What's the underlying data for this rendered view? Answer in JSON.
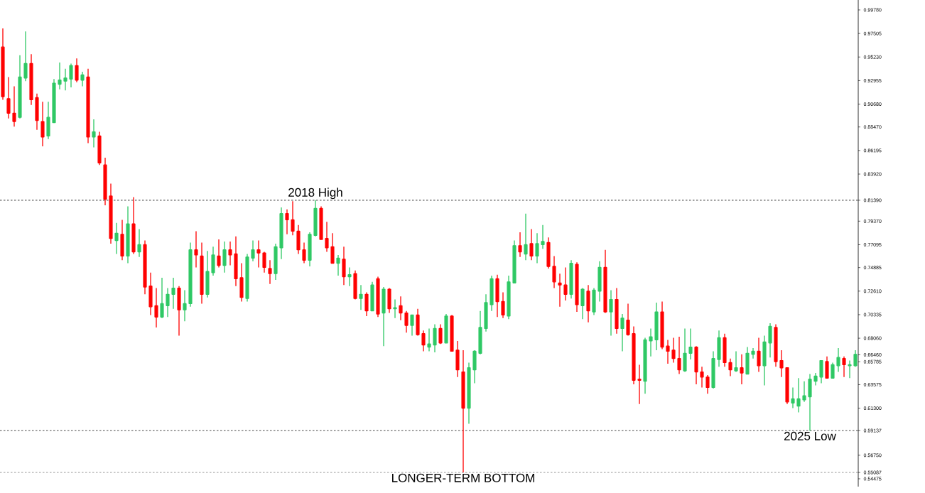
{
  "chart_data": {
    "type": "candlestick",
    "categories": [
      null,
      null,
      null,
      null,
      null,
      null,
      null,
      null,
      null,
      null,
      null,
      null,
      null,
      null,
      null,
      null,
      null,
      null,
      null,
      null,
      null,
      null,
      null,
      null,
      null,
      null,
      null,
      null,
      null,
      null,
      null,
      null,
      null,
      null,
      null,
      null,
      null,
      null,
      null,
      null,
      null,
      null,
      null,
      null,
      null,
      null,
      null,
      null,
      null,
      null,
      null,
      null,
      null,
      null,
      null,
      null,
      null,
      null,
      null,
      null,
      null,
      null,
      null,
      null,
      null,
      null,
      null,
      null,
      null,
      null,
      null,
      null,
      null,
      null,
      null,
      null,
      null,
      null,
      null,
      null,
      null,
      null,
      null,
      null,
      null,
      null,
      null,
      null,
      null,
      null,
      null,
      null,
      null,
      null,
      null,
      null,
      null,
      null,
      null,
      null,
      null,
      null,
      null,
      null,
      null,
      null,
      null,
      null,
      null,
      null,
      null,
      null,
      null,
      null,
      null,
      null,
      null,
      null,
      null,
      null,
      null,
      null,
      null,
      null,
      null,
      null,
      null,
      null,
      null,
      null,
      null,
      null,
      null,
      null,
      null,
      null,
      null,
      null,
      null,
      null,
      null,
      null,
      null,
      null,
      null,
      null,
      null,
      null,
      null,
      null,
      null
    ],
    "ohlc": [
      [
        0.962,
        0.98,
        0.911,
        0.914
      ],
      [
        0.912,
        0.933,
        0.893,
        0.898
      ],
      [
        0.898,
        0.924,
        0.885,
        0.89
      ],
      [
        0.894,
        0.954,
        0.893,
        0.933
      ],
      [
        0.932,
        0.977,
        0.929,
        0.946
      ],
      [
        0.946,
        0.955,
        0.906,
        0.911
      ],
      [
        0.913,
        0.917,
        0.882,
        0.891
      ],
      [
        0.89,
        0.909,
        0.866,
        0.875
      ],
      [
        0.876,
        0.909,
        0.873,
        0.894
      ],
      [
        0.889,
        0.931,
        0.889,
        0.927
      ],
      [
        0.926,
        0.947,
        0.921,
        0.93
      ],
      [
        0.929,
        0.941,
        0.92,
        0.932
      ],
      [
        0.931,
        0.946,
        0.923,
        0.944
      ],
      [
        0.944,
        0.951,
        0.928,
        0.93
      ],
      [
        0.93,
        0.938,
        0.924,
        0.935
      ],
      [
        0.933,
        0.941,
        0.869,
        0.875
      ],
      [
        0.875,
        0.892,
        0.865,
        0.88
      ],
      [
        0.876,
        0.88,
        0.848,
        0.85
      ],
      [
        0.848,
        0.855,
        0.809,
        0.815
      ],
      [
        0.818,
        0.83,
        0.772,
        0.777
      ],
      [
        0.775,
        0.792,
        0.762,
        0.782
      ],
      [
        0.781,
        0.795,
        0.756,
        0.76
      ],
      [
        0.76,
        0.808,
        0.753,
        0.791
      ],
      [
        0.791,
        0.817,
        0.762,
        0.764
      ],
      [
        0.764,
        0.786,
        0.759,
        0.771
      ],
      [
        0.771,
        0.775,
        0.723,
        0.73
      ],
      [
        0.731,
        0.744,
        0.703,
        0.711
      ],
      [
        0.712,
        0.729,
        0.691,
        0.701
      ],
      [
        0.701,
        0.739,
        0.7,
        0.714
      ],
      [
        0.712,
        0.729,
        0.701,
        0.723
      ],
      [
        0.723,
        0.739,
        0.709,
        0.729
      ],
      [
        0.729,
        0.731,
        0.683,
        0.708
      ],
      [
        0.708,
        0.727,
        0.697,
        0.714
      ],
      [
        0.714,
        0.773,
        0.711,
        0.766
      ],
      [
        0.766,
        0.784,
        0.749,
        0.761
      ],
      [
        0.76,
        0.773,
        0.714,
        0.723
      ],
      [
        0.723,
        0.765,
        0.72,
        0.745
      ],
      [
        0.744,
        0.769,
        0.741,
        0.761
      ],
      [
        0.76,
        0.776,
        0.749,
        0.751
      ],
      [
        0.751,
        0.774,
        0.744,
        0.766
      ],
      [
        0.766,
        0.774,
        0.751,
        0.761
      ],
      [
        0.762,
        0.779,
        0.731,
        0.738
      ],
      [
        0.739,
        0.753,
        0.716,
        0.72
      ],
      [
        0.719,
        0.762,
        0.716,
        0.759
      ],
      [
        0.758,
        0.775,
        0.755,
        0.766
      ],
      [
        0.766,
        0.775,
        0.749,
        0.763
      ],
      [
        0.763,
        0.764,
        0.744,
        0.749
      ],
      [
        0.748,
        0.756,
        0.733,
        0.743
      ],
      [
        0.743,
        0.772,
        0.737,
        0.769
      ],
      [
        0.768,
        0.807,
        0.757,
        0.801
      ],
      [
        0.801,
        0.805,
        0.781,
        0.795
      ],
      [
        0.795,
        0.813,
        0.78,
        0.784
      ],
      [
        0.784,
        0.79,
        0.762,
        0.766
      ],
      [
        0.766,
        0.773,
        0.753,
        0.756
      ],
      [
        0.756,
        0.783,
        0.75,
        0.781
      ],
      [
        0.78,
        0.814,
        0.779,
        0.806
      ],
      [
        0.806,
        0.808,
        0.776,
        0.776
      ],
      [
        0.777,
        0.793,
        0.764,
        0.768
      ],
      [
        0.769,
        0.782,
        0.753,
        0.753
      ],
      [
        0.753,
        0.761,
        0.741,
        0.758
      ],
      [
        0.757,
        0.769,
        0.732,
        0.74
      ],
      [
        0.74,
        0.749,
        0.731,
        0.742
      ],
      [
        0.743,
        0.746,
        0.718,
        0.719
      ],
      [
        0.719,
        0.732,
        0.708,
        0.723
      ],
      [
        0.723,
        0.725,
        0.702,
        0.707
      ],
      [
        0.707,
        0.735,
        0.707,
        0.732
      ],
      [
        0.738,
        0.74,
        0.701,
        0.704
      ],
      [
        0.705,
        0.73,
        0.673,
        0.728
      ],
      [
        0.728,
        0.729,
        0.705,
        0.709
      ],
      [
        0.709,
        0.718,
        0.7,
        0.71
      ],
      [
        0.712,
        0.721,
        0.698,
        0.705
      ],
      [
        0.705,
        0.707,
        0.686,
        0.693
      ],
      [
        0.693,
        0.703,
        0.683,
        0.703
      ],
      [
        0.703,
        0.709,
        0.683,
        0.684
      ],
      [
        0.685,
        0.688,
        0.668,
        0.674
      ],
      [
        0.672,
        0.69,
        0.668,
        0.675
      ],
      [
        0.674,
        0.694,
        0.667,
        0.69
      ],
      [
        0.69,
        0.694,
        0.675,
        0.676
      ],
      [
        0.676,
        0.704,
        0.676,
        0.702
      ],
      [
        0.702,
        0.703,
        0.668,
        0.668
      ],
      [
        0.669,
        0.678,
        0.643,
        0.65
      ],
      [
        0.648,
        0.669,
        0.551,
        0.613
      ],
      [
        0.613,
        0.657,
        0.598,
        0.652
      ],
      [
        0.65,
        0.669,
        0.637,
        0.668
      ],
      [
        0.666,
        0.707,
        0.665,
        0.691
      ],
      [
        0.69,
        0.723,
        0.687,
        0.715
      ],
      [
        0.713,
        0.741,
        0.707,
        0.738
      ],
      [
        0.738,
        0.742,
        0.701,
        0.716
      ],
      [
        0.716,
        0.725,
        0.7,
        0.703
      ],
      [
        0.702,
        0.741,
        0.699,
        0.735
      ],
      [
        0.734,
        0.775,
        0.734,
        0.77
      ],
      [
        0.77,
        0.783,
        0.759,
        0.764
      ],
      [
        0.762,
        0.801,
        0.756,
        0.771
      ],
      [
        0.772,
        0.786,
        0.756,
        0.76
      ],
      [
        0.76,
        0.782,
        0.753,
        0.772
      ],
      [
        0.771,
        0.79,
        0.767,
        0.774
      ],
      [
        0.773,
        0.778,
        0.748,
        0.75
      ],
      [
        0.75,
        0.76,
        0.729,
        0.735
      ],
      [
        0.734,
        0.743,
        0.711,
        0.732
      ],
      [
        0.732,
        0.749,
        0.717,
        0.723
      ],
      [
        0.723,
        0.756,
        0.719,
        0.753
      ],
      [
        0.752,
        0.754,
        0.706,
        0.713
      ],
      [
        0.712,
        0.729,
        0.699,
        0.728
      ],
      [
        0.726,
        0.732,
        0.696,
        0.707
      ],
      [
        0.706,
        0.729,
        0.703,
        0.727
      ],
      [
        0.726,
        0.755,
        0.716,
        0.749
      ],
      [
        0.749,
        0.766,
        0.705,
        0.706
      ],
      [
        0.706,
        0.727,
        0.683,
        0.718
      ],
      [
        0.718,
        0.729,
        0.685,
        0.69
      ],
      [
        0.69,
        0.704,
        0.668,
        0.7
      ],
      [
        0.698,
        0.714,
        0.683,
        0.684
      ],
      [
        0.685,
        0.692,
        0.636,
        0.64
      ],
      [
        0.641,
        0.655,
        0.617,
        0.64
      ],
      [
        0.639,
        0.681,
        0.627,
        0.679
      ],
      [
        0.678,
        0.69,
        0.663,
        0.682
      ],
      [
        0.679,
        0.715,
        0.669,
        0.706
      ],
      [
        0.706,
        0.716,
        0.67,
        0.672
      ],
      [
        0.673,
        0.679,
        0.656,
        0.668
      ],
      [
        0.669,
        0.681,
        0.657,
        0.661
      ],
      [
        0.661,
        0.682,
        0.646,
        0.65
      ],
      [
        0.649,
        0.69,
        0.648,
        0.666
      ],
      [
        0.666,
        0.69,
        0.66,
        0.672
      ],
      [
        0.672,
        0.673,
        0.636,
        0.648
      ],
      [
        0.648,
        0.653,
        0.633,
        0.643
      ],
      [
        0.643,
        0.645,
        0.627,
        0.633
      ],
      [
        0.633,
        0.668,
        0.632,
        0.661
      ],
      [
        0.66,
        0.688,
        0.653,
        0.681
      ],
      [
        0.681,
        0.685,
        0.653,
        0.657
      ],
      [
        0.657,
        0.661,
        0.644,
        0.65
      ],
      [
        0.649,
        0.668,
        0.648,
        0.652
      ],
      [
        0.652,
        0.665,
        0.636,
        0.647
      ],
      [
        0.646,
        0.672,
        0.646,
        0.666
      ],
      [
        0.665,
        0.671,
        0.661,
        0.668
      ],
      [
        0.668,
        0.681,
        0.648,
        0.654
      ],
      [
        0.654,
        0.683,
        0.635,
        0.677
      ],
      [
        0.676,
        0.695,
        0.662,
        0.692
      ],
      [
        0.691,
        0.694,
        0.653,
        0.658
      ],
      [
        0.659,
        0.669,
        0.643,
        0.652
      ],
      [
        0.652,
        0.652,
        0.617,
        0.619
      ],
      [
        0.618,
        0.633,
        0.613,
        0.622
      ],
      [
        0.615,
        0.642,
        0.609,
        0.622
      ],
      [
        0.621,
        0.639,
        0.619,
        0.625
      ],
      [
        0.624,
        0.646,
        0.591,
        0.641
      ],
      [
        0.639,
        0.647,
        0.635,
        0.644
      ],
      [
        0.643,
        0.659,
        0.637,
        0.659
      ],
      [
        0.658,
        0.663,
        0.642,
        0.642
      ],
      [
        0.642,
        0.657,
        0.642,
        0.655
      ],
      [
        0.654,
        0.671,
        0.648,
        0.662
      ],
      [
        0.661,
        0.663,
        0.643,
        0.655
      ],
      [
        0.654,
        0.659,
        0.642,
        0.655
      ],
      [
        0.654,
        0.669,
        0.653,
        0.665
      ]
    ],
    "colors": [
      "#ff0000",
      "#ff0000",
      "#ff0000",
      "#2ec864",
      "#2ec864",
      "#ff0000",
      "#ff0000",
      "#ff0000",
      "#2ec864",
      "#2ec864",
      "#2ec864",
      "#2ec864",
      "#2ec864",
      "#ff0000",
      "#2ec864",
      "#ff0000",
      "#2ec864",
      "#ff0000",
      "#ff0000",
      "#ff0000",
      "#2ec864",
      "#ff0000",
      "#2ec864",
      "#ff0000",
      "#2ec864",
      "#ff0000",
      "#ff0000",
      "#ff0000",
      "#2ec864",
      "#2ec864",
      "#2ec864",
      "#ff0000",
      "#2ec864",
      "#2ec864",
      "#ff0000",
      "#ff0000",
      "#2ec864",
      "#2ec864",
      "#ff0000",
      "#2ec864",
      "#ff0000",
      "#ff0000",
      "#ff0000",
      "#2ec864",
      "#2ec864",
      "#ff0000",
      "#ff0000",
      "#ff0000",
      "#2ec864",
      "#2ec864",
      "#ff0000",
      "#ff0000",
      "#ff0000",
      "#ff0000",
      "#2ec864",
      "#2ec864",
      "#ff0000",
      "#ff0000",
      "#ff0000",
      "#2ec864",
      "#ff0000",
      "#2ec864",
      "#ff0000",
      "#2ec864",
      "#ff0000",
      "#2ec864",
      "#ff0000",
      "#2ec864",
      "#ff0000",
      "#2ec864",
      "#ff0000",
      "#ff0000",
      "#2ec864",
      "#ff0000",
      "#ff0000",
      "#2ec864",
      "#2ec864",
      "#ff0000",
      "#2ec864",
      "#ff0000",
      "#ff0000",
      "#ff0000",
      "#2ec864",
      "#2ec864",
      "#2ec864",
      "#2ec864",
      "#2ec864",
      "#ff0000",
      "#ff0000",
      "#2ec864",
      "#2ec864",
      "#ff0000",
      "#2ec864",
      "#ff0000",
      "#2ec864",
      "#2ec864",
      "#ff0000",
      "#ff0000",
      "#ff0000",
      "#ff0000",
      "#2ec864",
      "#ff0000",
      "#2ec864",
      "#ff0000",
      "#2ec864",
      "#2ec864",
      "#ff0000",
      "#2ec864",
      "#ff0000",
      "#2ec864",
      "#ff0000",
      "#ff0000",
      "#ff0000",
      "#2ec864",
      "#2ec864",
      "#2ec864",
      "#ff0000",
      "#ff0000",
      "#ff0000",
      "#ff0000",
      "#2ec864",
      "#2ec864",
      "#ff0000",
      "#ff0000",
      "#ff0000",
      "#2ec864",
      "#2ec864",
      "#ff0000",
      "#ff0000",
      "#2ec864",
      "#ff0000",
      "#2ec864",
      "#2ec864",
      "#ff0000",
      "#2ec864",
      "#2ec864",
      "#ff0000",
      "#ff0000",
      "#ff0000",
      "#2ec864",
      "#2ec864",
      "#2ec864",
      "#2ec864",
      "#2ec864",
      "#2ec864",
      "#ff0000",
      "#2ec864",
      "#2ec864",
      "#ff0000",
      "#2ec864",
      "#2ec864"
    ],
    "ylim": [
      0.5372,
      1.0074
    ],
    "yticks": [
      {
        "value": 0.9978,
        "label": "0.99780"
      },
      {
        "value": 0.97505,
        "label": "0.97505"
      },
      {
        "value": 0.9523,
        "label": "0.95230"
      },
      {
        "value": 0.92955,
        "label": "0.92955"
      },
      {
        "value": 0.9068,
        "label": "0.90680"
      },
      {
        "value": 0.8847,
        "label": "0.88470"
      },
      {
        "value": 0.86195,
        "label": "0.86195"
      },
      {
        "value": 0.8392,
        "label": "0.83920"
      },
      {
        "value": 0.8139,
        "label": "0.81390"
      },
      {
        "value": 0.7937,
        "label": "0.79370"
      },
      {
        "value": 0.77095,
        "label": "0.77095"
      },
      {
        "value": 0.74885,
        "label": "0.74885"
      },
      {
        "value": 0.7261,
        "label": "0.72610"
      },
      {
        "value": 0.70335,
        "label": "0.70335"
      },
      {
        "value": 0.6806,
        "label": "0.68060"
      },
      {
        "value": 0.6646,
        "label": "0.66460"
      },
      {
        "value": 0.65785,
        "label": "0.65785"
      },
      {
        "value": 0.63575,
        "label": "0.63575"
      },
      {
        "value": 0.613,
        "label": "0.61300"
      },
      {
        "value": 0.59137,
        "label": "0.59137"
      },
      {
        "value": 0.5675,
        "label": "0.56750"
      },
      {
        "value": 0.55087,
        "label": "0.55087"
      },
      {
        "value": 0.54475,
        "label": "0.54475"
      }
    ],
    "ref_lines": [
      {
        "axis": "y",
        "value": 0.8139,
        "label": "2018 High",
        "color": "#000000",
        "line_style": "dashed"
      },
      {
        "axis": "y",
        "value": 0.59137,
        "label": "2025 Low",
        "color": "#000000",
        "line_style": "dashed"
      },
      {
        "axis": "y",
        "value": 0.55087,
        "label": "LONGER-TERM BOTTOM",
        "color": "#000000",
        "line_style": "dashed"
      }
    ],
    "grid": false
  }
}
